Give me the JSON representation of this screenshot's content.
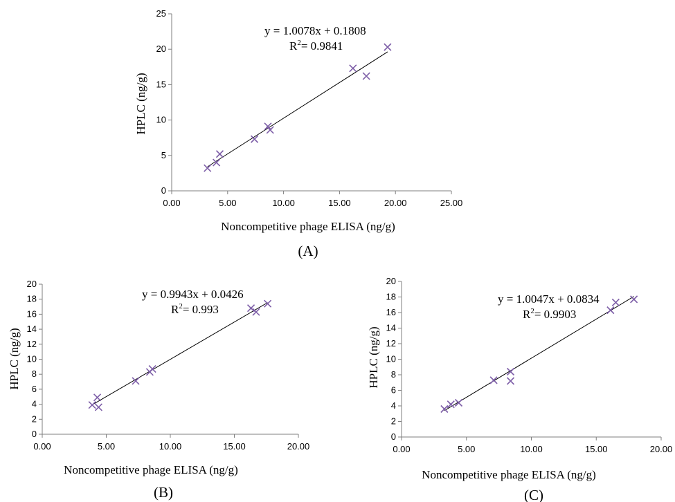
{
  "chart_data": [
    {
      "type": "scatter",
      "panel_label": "(A)",
      "xlabel": "Noncompetitive phage ELISA (ng/g)",
      "ylabel": "HPLC (ng/g)",
      "xlim": [
        0,
        25
      ],
      "ylim": [
        0,
        25
      ],
      "xticks": [
        "0.00",
        "5.00",
        "10.00",
        "15.00",
        "20.00",
        "25.00"
      ],
      "yticks": [
        "0",
        "5",
        "10",
        "15",
        "20",
        "25"
      ],
      "x_tick_values": [
        0,
        5,
        10,
        15,
        20,
        25
      ],
      "y_tick_values": [
        0,
        5,
        10,
        15,
        20,
        25
      ],
      "equation": "y = 1.0078x + 0.1808",
      "r2_label": "R",
      "r2_value": "= 0.9841",
      "fit": {
        "slope": 1.0078,
        "intercept": 0.1808,
        "x_range": [
          3.2,
          19.3
        ]
      },
      "points": [
        {
          "x": 3.2,
          "y": 3.2
        },
        {
          "x": 4.0,
          "y": 4.0
        },
        {
          "x": 4.3,
          "y": 5.2
        },
        {
          "x": 7.4,
          "y": 7.3
        },
        {
          "x": 8.6,
          "y": 9.1
        },
        {
          "x": 8.8,
          "y": 8.6
        },
        {
          "x": 16.2,
          "y": 17.3
        },
        {
          "x": 17.4,
          "y": 16.2
        },
        {
          "x": 19.3,
          "y": 20.3
        }
      ],
      "marker_color": "#7e5fa8"
    },
    {
      "type": "scatter",
      "panel_label": "(B)",
      "xlabel": "Noncompetitive phage ELISA (ng/g)",
      "ylabel": "HPLC (ng/g)",
      "xlim": [
        0,
        20
      ],
      "ylim": [
        0,
        20
      ],
      "xticks": [
        "0.00",
        "5.00",
        "10.00",
        "15.00",
        "20.00"
      ],
      "yticks": [
        "0",
        "2",
        "4",
        "6",
        "8",
        "10",
        "12",
        "14",
        "16",
        "18",
        "20"
      ],
      "x_tick_values": [
        0,
        5,
        10,
        15,
        20
      ],
      "y_tick_values": [
        0,
        2,
        4,
        6,
        8,
        10,
        12,
        14,
        16,
        18,
        20
      ],
      "equation": "y = 0.9943x + 0.0426",
      "r2_label": "R",
      "r2_value": "= 0.993",
      "fit": {
        "slope": 0.9943,
        "intercept": 0.0426,
        "x_range": [
          3.9,
          17.6
        ]
      },
      "points": [
        {
          "x": 3.9,
          "y": 3.9
        },
        {
          "x": 4.4,
          "y": 3.6
        },
        {
          "x": 4.3,
          "y": 4.9
        },
        {
          "x": 7.3,
          "y": 7.1
        },
        {
          "x": 8.4,
          "y": 8.3
        },
        {
          "x": 8.6,
          "y": 8.7
        },
        {
          "x": 16.3,
          "y": 16.8
        },
        {
          "x": 16.7,
          "y": 16.3
        },
        {
          "x": 17.6,
          "y": 17.4
        }
      ],
      "marker_color": "#7e5fa8"
    },
    {
      "type": "scatter",
      "panel_label": "(C)",
      "xlabel": "Noncompetitive phage ELISA (ng/g)",
      "ylabel": "HPLC (ng/g)",
      "xlim": [
        0,
        20
      ],
      "ylim": [
        0,
        20
      ],
      "xticks": [
        "0.00",
        "5.00",
        "10.00",
        "15.00",
        "20.00"
      ],
      "yticks": [
        "0",
        "2",
        "4",
        "6",
        "8",
        "10",
        "12",
        "14",
        "16",
        "18",
        "20"
      ],
      "x_tick_values": [
        0,
        5,
        10,
        15,
        20
      ],
      "y_tick_values": [
        0,
        2,
        4,
        6,
        8,
        10,
        12,
        14,
        16,
        18,
        20
      ],
      "equation": "y = 1.0047x + 0.0834",
      "r2_label": "R",
      "r2_value": "= 0.9903",
      "fit": {
        "slope": 1.0047,
        "intercept": 0.0834,
        "x_range": [
          3.3,
          17.9
        ]
      },
      "points": [
        {
          "x": 3.3,
          "y": 3.6
        },
        {
          "x": 3.8,
          "y": 4.2
        },
        {
          "x": 4.4,
          "y": 4.4
        },
        {
          "x": 7.1,
          "y": 7.3
        },
        {
          "x": 8.4,
          "y": 8.4
        },
        {
          "x": 8.4,
          "y": 7.2
        },
        {
          "x": 16.1,
          "y": 16.3
        },
        {
          "x": 16.5,
          "y": 17.3
        },
        {
          "x": 17.9,
          "y": 17.7
        }
      ],
      "marker_color": "#7e5fa8"
    }
  ]
}
